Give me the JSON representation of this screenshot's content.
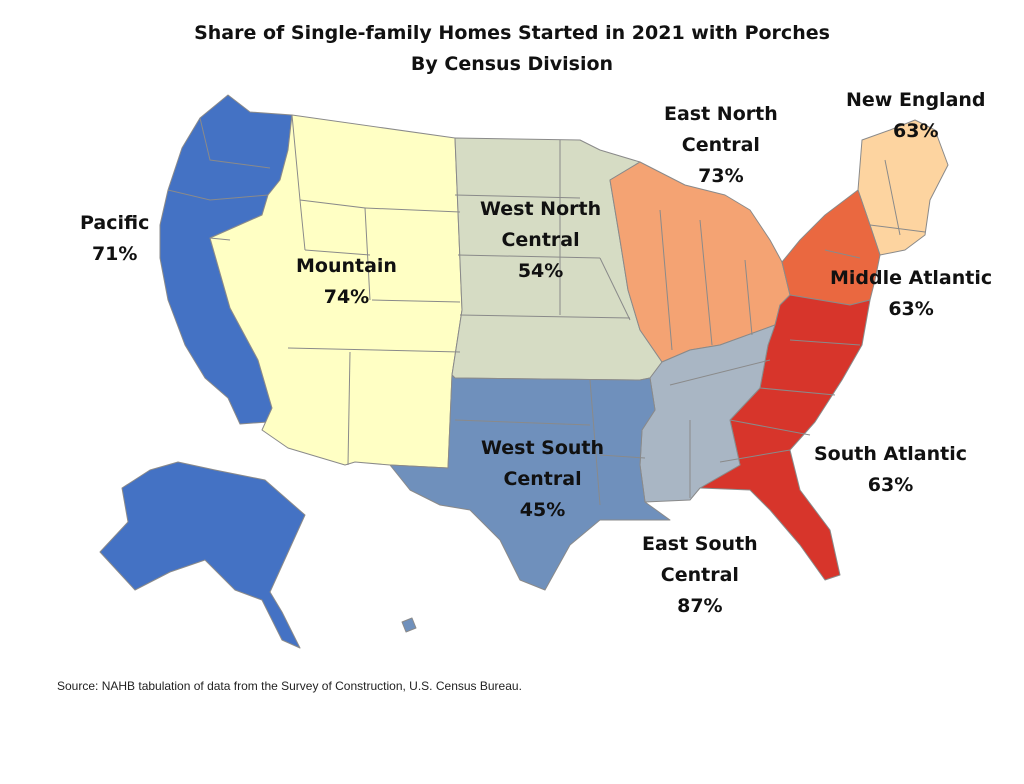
{
  "title": "Share of Single-family Homes Started in 2021 with Porches",
  "subtitle": "By Census Division",
  "source": "Source: NAHB tabulation of data from the Survey of Construction, U.S. Census Bureau.",
  "divisions": {
    "pacific": {
      "name": "Pacific",
      "value": "71%",
      "color": "#4472c4"
    },
    "mountain": {
      "name": "Mountain",
      "value": "74%",
      "color": "#ffffc4"
    },
    "west_north_central": {
      "name_line1": "West North",
      "name_line2": "Central",
      "value": "54%",
      "color": "#d6dcc4"
    },
    "east_north_central": {
      "name_line1": "East North",
      "name_line2": "Central",
      "value": "73%",
      "color": "#f4a373"
    },
    "new_england": {
      "name": "New England",
      "value": "63%",
      "color": "#fdd4a0"
    },
    "middle_atlantic": {
      "name": "Middle Atlantic",
      "value": "63%",
      "color": "#ea6840"
    },
    "south_atlantic": {
      "name": "South Atlantic",
      "value": "63%",
      "color": "#d7352b"
    },
    "east_south_central": {
      "name_line1": "East South",
      "name_line2": "Central",
      "value": "87%",
      "color": "#a9b6c4"
    },
    "west_south_central": {
      "name_line1": "West South",
      "name_line2": "Central",
      "value": "45%",
      "color": "#6f90bc"
    }
  }
}
